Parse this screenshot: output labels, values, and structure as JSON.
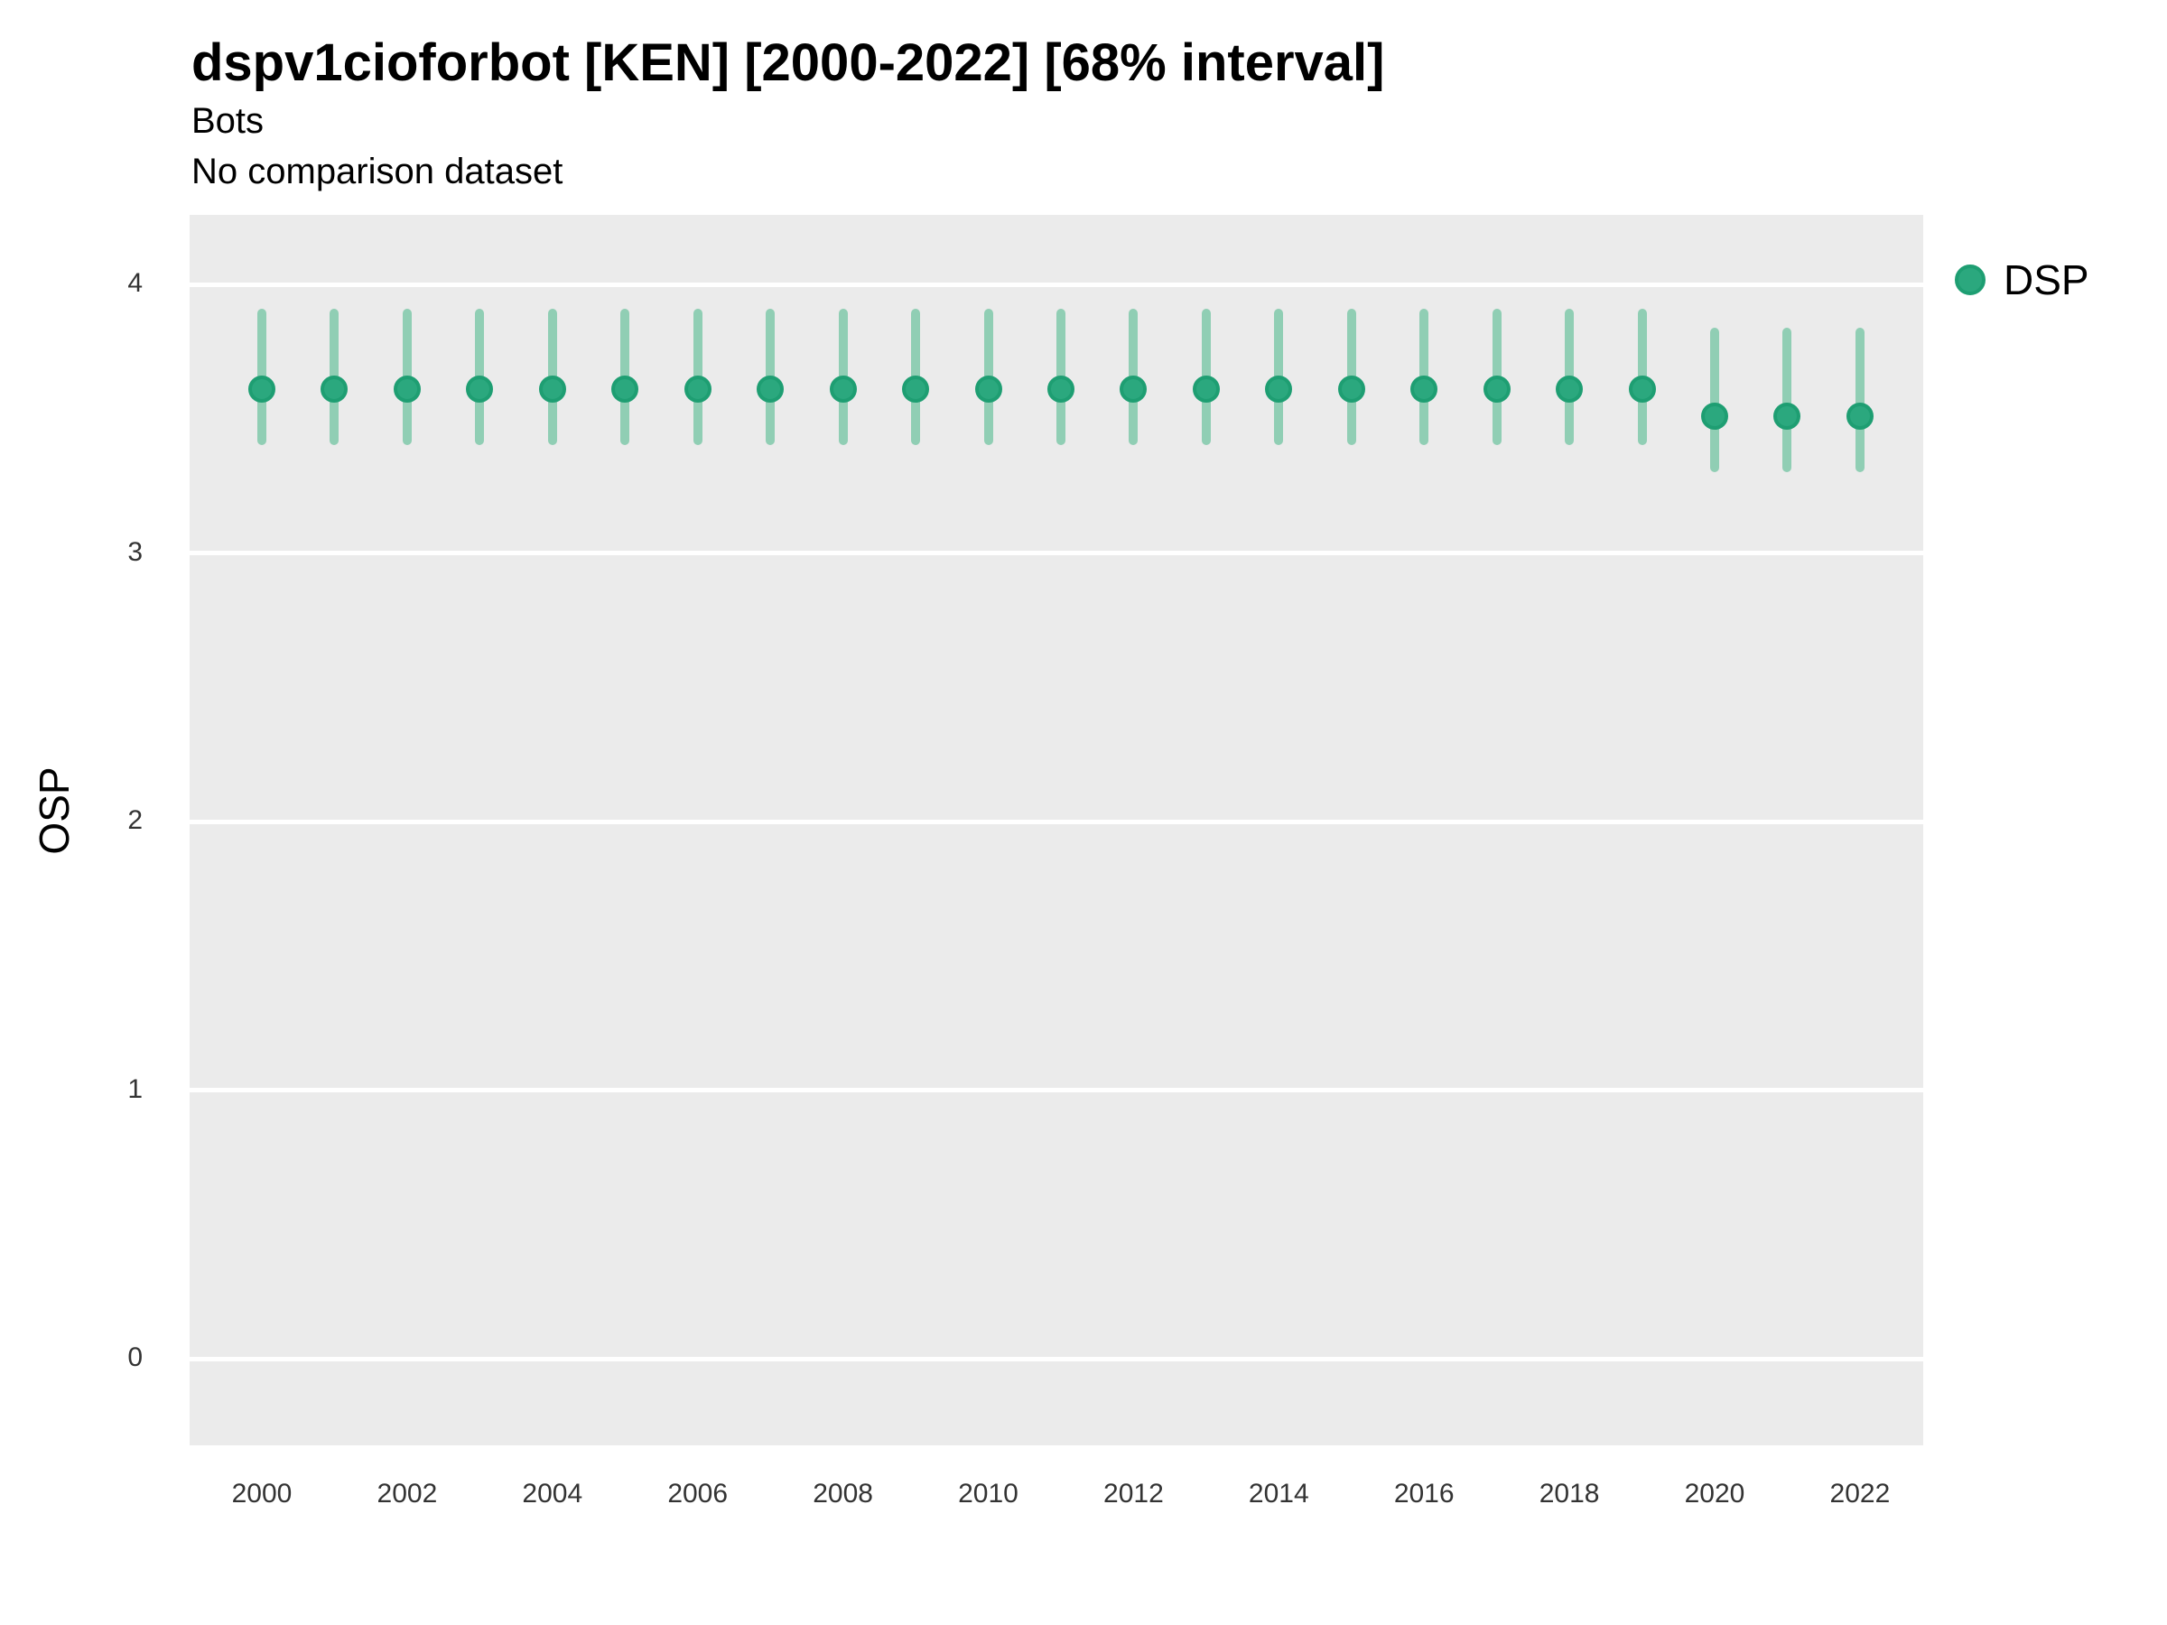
{
  "header": {
    "title": "dspv1cioforbot [KEN] [2000-2022] [68% interval]",
    "subtitle": "Bots",
    "note": "No comparison dataset"
  },
  "legend": {
    "label": "DSP"
  },
  "y_axis": {
    "title": "OSP",
    "ticks": [
      4,
      3,
      2,
      1,
      0
    ]
  },
  "x_axis": {
    "ticks": [
      2000,
      2002,
      2004,
      2006,
      2008,
      2010,
      2012,
      2014,
      2016,
      2018,
      2020,
      2022
    ]
  },
  "colors": {
    "point_fill": "#2BA87E",
    "point_ring": "#1E9E72",
    "error_bar": "#90CEB4",
    "panel_bg": "#EBEBEB",
    "grid": "#FFFFFF"
  },
  "chart_data": {
    "type": "scatter",
    "title": "dspv1cioforbot [KEN] [2000-2022] [68% interval]",
    "subtitle": "Bots",
    "note": "No comparison dataset",
    "xlabel": "",
    "ylabel": "OSP",
    "legend_position": "right",
    "legend_entries": [
      "DSP"
    ],
    "grid": "major-horizontal-white",
    "interval": "68%",
    "ylim": [
      -0.35,
      4.3
    ],
    "yticks": [
      0,
      1,
      2,
      3,
      4
    ],
    "xticks": [
      2000,
      2002,
      2004,
      2006,
      2008,
      2010,
      2012,
      2014,
      2016,
      2018,
      2020,
      2022
    ],
    "x": [
      2000,
      2001,
      2002,
      2003,
      2004,
      2005,
      2006,
      2007,
      2008,
      2009,
      2010,
      2011,
      2012,
      2013,
      2014,
      2015,
      2016,
      2017,
      2018,
      2019,
      2020,
      2021,
      2022
    ],
    "series": [
      {
        "name": "DSP",
        "values": [
          3.61,
          3.61,
          3.61,
          3.61,
          3.61,
          3.61,
          3.61,
          3.61,
          3.61,
          3.61,
          3.61,
          3.61,
          3.61,
          3.61,
          3.61,
          3.61,
          3.61,
          3.61,
          3.61,
          3.61,
          3.51,
          3.51,
          3.51
        ],
        "interval_low": [
          3.4,
          3.4,
          3.4,
          3.4,
          3.4,
          3.4,
          3.4,
          3.4,
          3.4,
          3.4,
          3.4,
          3.4,
          3.4,
          3.4,
          3.4,
          3.4,
          3.4,
          3.4,
          3.4,
          3.4,
          3.3,
          3.3,
          3.3
        ],
        "interval_high": [
          3.91,
          3.91,
          3.91,
          3.91,
          3.91,
          3.91,
          3.91,
          3.91,
          3.91,
          3.91,
          3.91,
          3.91,
          3.91,
          3.91,
          3.91,
          3.91,
          3.91,
          3.91,
          3.91,
          3.91,
          3.84,
          3.84,
          3.84
        ]
      }
    ]
  }
}
